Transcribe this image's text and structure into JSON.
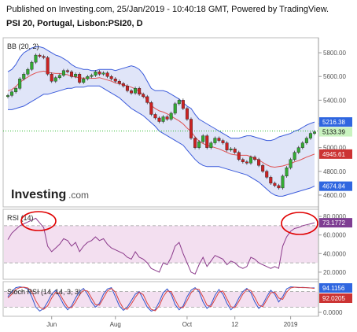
{
  "header": {
    "line1": "Published on Investing.com, 25/Jan/2019 - 10:40:18 GMT, Powered by TradingView.",
    "line2": "PSI 20, Portugal, Lisbon:PSI20, D"
  },
  "logo": {
    "text": "Investing",
    "suffix": ".com"
  },
  "colors": {
    "up": "#33aa33",
    "down": "#cc2222",
    "band_fill": "#d6dcf5",
    "band_line": "#3b5bdb",
    "basis": "#e05050",
    "rsi_line": "#8b3a8b",
    "rsi_fill": "#f3dff0",
    "stoch_k": "#3355cc",
    "stoch_d": "#d94040",
    "annotation": "#e00000",
    "ref_line": "#2db92d",
    "tag_blue": "#2f66e0",
    "tag_red": "#cc3333",
    "tag_green": "#c9f3c0",
    "tag_purple": "#7e3d92"
  },
  "chart_data": [
    {
      "type": "candlestick",
      "title": "BB (20, 2)",
      "ylim": [
        4520,
        5900
      ],
      "yticks": [
        4600,
        4800,
        5000,
        5200,
        5400,
        5600,
        5800
      ],
      "ytick_labels": [
        "4600.00",
        "4800.00",
        "5000.00",
        "5200.00",
        "5400.00",
        "5600.00",
        "5800.00"
      ],
      "x_labels": [
        "Jun",
        "Aug",
        "Oct",
        "12",
        "2019"
      ],
      "x_label_index": [
        11,
        27,
        45,
        57,
        71
      ],
      "reference_line": 5140,
      "last_values": [
        {
          "label": "5216.38",
          "value": 5216.38,
          "kind": "blue"
        },
        {
          "label": "5133.39",
          "value": 5133.39,
          "kind": "green"
        },
        {
          "label": "4945.61",
          "value": 4945.61,
          "kind": "red"
        },
        {
          "label": "4674.84",
          "value": 4674.84,
          "kind": "blue"
        }
      ],
      "closes": [
        5440,
        5470,
        5500,
        5580,
        5620,
        5660,
        5720,
        5780,
        5770,
        5760,
        5620,
        5560,
        5590,
        5610,
        5650,
        5640,
        5600,
        5620,
        5550,
        5580,
        5600,
        5610,
        5640,
        5620,
        5630,
        5600,
        5580,
        5560,
        5540,
        5520,
        5480,
        5460,
        5500,
        5450,
        5430,
        5380,
        5280,
        5250,
        5220,
        5260,
        5240,
        5290,
        5370,
        5400,
        5330,
        5240,
        5080,
        5000,
        5050,
        5100,
        5000,
        5040,
        5080,
        5060,
        5040,
        4980,
        4990,
        4960,
        4900,
        4880,
        4870,
        4920,
        4900,
        4850,
        4800,
        4750,
        4700,
        4680,
        4660,
        4760,
        4830,
        4900,
        4960,
        5000,
        5040,
        5080,
        5120,
        5133
      ],
      "bb_upper": [
        5640,
        5660,
        5700,
        5760,
        5800,
        5820,
        5840,
        5850,
        5850,
        5840,
        5820,
        5800,
        5780,
        5770,
        5750,
        5730,
        5700,
        5680,
        5670,
        5660,
        5660,
        5650,
        5650,
        5660,
        5660,
        5660,
        5660,
        5650,
        5660,
        5670,
        5680,
        5690,
        5680,
        5660,
        5620,
        5560,
        5500,
        5480,
        5480,
        5480,
        5470,
        5450,
        5430,
        5410,
        5380,
        5350,
        5330,
        5280,
        5240,
        5220,
        5200,
        5180,
        5160,
        5140,
        5120,
        5100,
        5080,
        5080,
        5080,
        5090,
        5100,
        5100,
        5090,
        5080,
        5070,
        5060,
        5060,
        5070,
        5090,
        5100,
        5110,
        5120,
        5140,
        5150,
        5170,
        5190,
        5205,
        5216
      ],
      "bb_lower": [
        5320,
        5320,
        5330,
        5340,
        5350,
        5370,
        5390,
        5410,
        5430,
        5450,
        5450,
        5460,
        5470,
        5480,
        5490,
        5500,
        5500,
        5510,
        5510,
        5510,
        5520,
        5520,
        5520,
        5520,
        5500,
        5480,
        5460,
        5440,
        5420,
        5390,
        5360,
        5330,
        5310,
        5290,
        5270,
        5240,
        5210,
        5180,
        5140,
        5120,
        5100,
        5080,
        5060,
        5040,
        5020,
        4980,
        4940,
        4900,
        4870,
        4850,
        4840,
        4840,
        4840,
        4840,
        4830,
        4820,
        4810,
        4800,
        4790,
        4780,
        4770,
        4750,
        4730,
        4710,
        4680,
        4650,
        4620,
        4600,
        4590,
        4590,
        4600,
        4610,
        4620,
        4630,
        4640,
        4650,
        4660,
        4675
      ]
    },
    {
      "type": "line",
      "title": "RSI (14)",
      "ylim": [
        14,
        86
      ],
      "yticks": [
        20,
        40,
        60,
        80
      ],
      "ytick_labels": [
        "20.0000",
        "40.0000",
        "60.0000",
        "80.0000"
      ],
      "bands": [
        30,
        70
      ],
      "last_value_label": "73.1772",
      "values": [
        55,
        62,
        66,
        70,
        72,
        74,
        76,
        78,
        73,
        68,
        48,
        42,
        46,
        50,
        56,
        54,
        48,
        52,
        42,
        48,
        52,
        54,
        58,
        54,
        56,
        50,
        46,
        44,
        42,
        40,
        36,
        34,
        42,
        36,
        34,
        30,
        24,
        22,
        20,
        30,
        28,
        36,
        48,
        52,
        40,
        30,
        20,
        18,
        28,
        36,
        26,
        32,
        38,
        36,
        34,
        28,
        32,
        30,
        26,
        24,
        26,
        36,
        34,
        30,
        28,
        26,
        24,
        26,
        24,
        48,
        58,
        64,
        67,
        68,
        70,
        71,
        72,
        73.18
      ]
    },
    {
      "type": "line",
      "title": "Stoch RSI (14, 14, 3, 3)",
      "ylim": [
        -6,
        106
      ],
      "yticks": [
        0
      ],
      "ytick_labels": [
        "0.0000"
      ],
      "bands": [
        20,
        80
      ],
      "last_values": [
        {
          "label": "94.1156",
          "value": 94.1156,
          "kind": "blue"
        },
        {
          "label": "92.0205",
          "value": 92.0205,
          "kind": "red"
        }
      ],
      "series": [
        {
          "name": "K",
          "values": [
            60,
            80,
            95,
            98,
            96,
            90,
            60,
            20,
            5,
            15,
            40,
            70,
            85,
            60,
            30,
            10,
            25,
            55,
            80,
            92,
            70,
            40,
            20,
            35,
            70,
            90,
            95,
            60,
            25,
            8,
            20,
            45,
            70,
            80,
            50,
            20,
            5,
            10,
            40,
            75,
            90,
            70,
            30,
            10,
            25,
            60,
            85,
            95,
            80,
            40,
            15,
            30,
            65,
            88,
            70,
            35,
            10,
            25,
            55,
            80,
            92,
            75,
            40,
            15,
            30,
            60,
            85,
            70,
            40,
            60,
            90,
            98,
            97,
            95,
            96,
            95,
            94,
            94.12
          ]
        },
        {
          "name": "D",
          "values": [
            55,
            70,
            88,
            95,
            97,
            94,
            80,
            45,
            20,
            12,
            25,
            55,
            78,
            72,
            45,
            20,
            18,
            40,
            68,
            85,
            82,
            55,
            30,
            28,
            55,
            82,
            92,
            78,
            42,
            15,
            12,
            32,
            58,
            78,
            68,
            35,
            12,
            6,
            25,
            60,
            82,
            80,
            48,
            20,
            18,
            45,
            75,
            90,
            88,
            60,
            28,
            22,
            50,
            78,
            82,
            52,
            22,
            18,
            42,
            70,
            88,
            84,
            58,
            28,
            22,
            48,
            75,
            78,
            55,
            50,
            78,
            94,
            97,
            96,
            95,
            95,
            94,
            92.02
          ]
        }
      ]
    }
  ]
}
